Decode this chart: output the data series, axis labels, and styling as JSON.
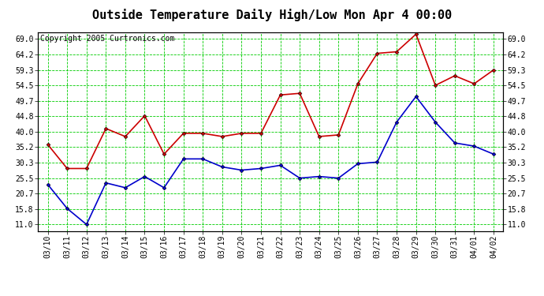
{
  "title": "Outside Temperature Daily High/Low Mon Apr 4 00:00",
  "copyright": "Copyright 2005 Curtronics.com",
  "dates": [
    "03/10",
    "03/11",
    "03/12",
    "03/13",
    "03/14",
    "03/15",
    "03/16",
    "03/17",
    "03/18",
    "03/19",
    "03/20",
    "03/21",
    "03/22",
    "03/23",
    "03/24",
    "03/25",
    "03/26",
    "03/27",
    "03/28",
    "03/29",
    "03/30",
    "03/31",
    "04/01",
    "04/02"
  ],
  "high_temps": [
    36.0,
    28.5,
    28.5,
    41.0,
    38.5,
    45.0,
    33.0,
    39.5,
    39.5,
    38.5,
    39.5,
    39.5,
    51.5,
    52.0,
    38.5,
    39.0,
    55.0,
    64.5,
    65.0,
    70.5,
    54.5,
    57.5,
    55.0,
    59.3
  ],
  "low_temps": [
    23.5,
    16.0,
    11.0,
    24.0,
    22.5,
    26.0,
    22.5,
    31.5,
    31.5,
    29.0,
    28.0,
    28.5,
    29.5,
    25.5,
    26.0,
    25.5,
    30.0,
    30.5,
    43.0,
    51.0,
    43.0,
    36.5,
    35.5,
    33.0
  ],
  "high_color": "#cc0000",
  "low_color": "#0000cc",
  "marker": "D",
  "marker_size": 2.5,
  "line_width": 1.2,
  "bg_color": "#ffffff",
  "plot_bg_color": "#ffffff",
  "grid_color": "#00cc00",
  "border_color": "#000000",
  "yticks": [
    11.0,
    15.8,
    20.7,
    25.5,
    30.3,
    35.2,
    40.0,
    44.8,
    49.7,
    54.5,
    59.3,
    64.2,
    69.0
  ],
  "ylim": [
    9.0,
    71.0
  ],
  "title_fontsize": 11,
  "copyright_fontsize": 7,
  "tick_fontsize": 7,
  "ylabel_fontsize": 7
}
